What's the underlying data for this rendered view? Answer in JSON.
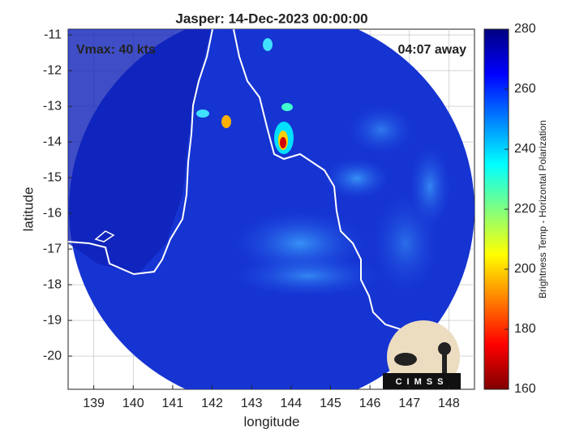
{
  "chart_data": {
    "type": "map",
    "title": "Jasper: 14-Dec-2023 00:00:00",
    "annotations": [
      "Vmax: 40 kts",
      "04:07 away"
    ],
    "logo_text": "CIMSS",
    "xlabel": "longitude",
    "ylabel": "latitude",
    "xlim": [
      138.35,
      148.65
    ],
    "xticks": [
      139,
      140,
      141,
      142,
      143,
      144,
      145,
      146,
      147,
      148
    ],
    "ylim": [
      -20.93,
      -10.84
    ],
    "yticks": [
      -20,
      -19,
      -18,
      -17,
      -16,
      -15,
      -14,
      -13,
      -12,
      -11
    ],
    "grid": true,
    "colorbar": {
      "label": "Brightness Temp - Horizontal Polarization",
      "clim": [
        160,
        280
      ],
      "ticks": [
        160,
        180,
        200,
        220,
        240,
        260,
        280
      ],
      "colormap": [
        "#800000",
        "#ff0000",
        "#ff8000",
        "#ffff00",
        "#80ff80",
        "#00ffff",
        "#0080ff",
        "#0000ff",
        "#000080"
      ]
    }
  }
}
